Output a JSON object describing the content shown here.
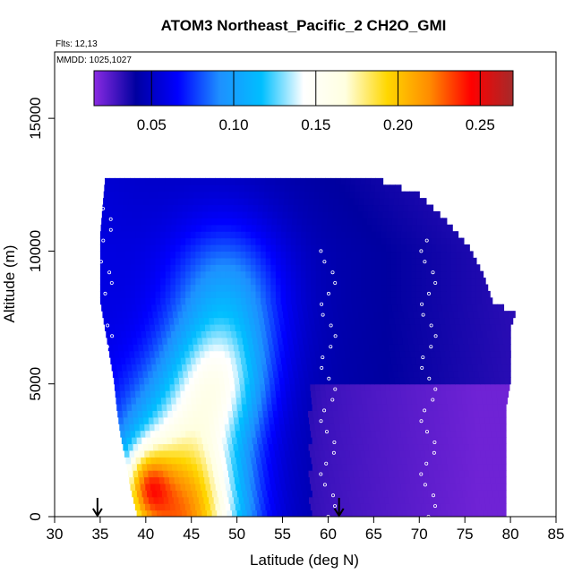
{
  "chart_data": {
    "type": "heatmap",
    "title": "ATOM3 Northeast_Pacific_2 CH2O_GMI",
    "annotations": [
      "Flts: 12,13",
      "MMDD: 1025,1027"
    ],
    "xlabel": "Latitude (deg N)",
    "ylabel": "Altitude (m)",
    "xlim": [
      30,
      85
    ],
    "ylim": [
      0,
      17500
    ],
    "x_ticks": [
      30,
      35,
      40,
      45,
      50,
      55,
      60,
      65,
      70,
      75,
      80,
      85
    ],
    "y_ticks": [
      0,
      5000,
      10000,
      15000
    ],
    "colorbar": {
      "range": [
        0.015,
        0.27
      ],
      "ticks": [
        0.05,
        0.1,
        0.15,
        0.2,
        0.25
      ],
      "tick_labels": [
        "0.05",
        "0.10",
        "0.15",
        "0.20",
        "0.25"
      ],
      "colors": [
        "#8a2be2",
        "#0000a0",
        "#0000ff",
        "#1e90ff",
        "#00bfff",
        "#ffffff",
        "#ffffe0",
        "#ffd700",
        "#ff8c00",
        "#ff0000",
        "#a52a2a"
      ]
    },
    "grid": false,
    "arrow_markers_x": [
      34.7,
      61.2
    ],
    "data_extent": {
      "lat_min_by_altitude": [
        [
          0,
          39.0
        ],
        [
          1000,
          38.3
        ],
        [
          2000,
          37.8
        ],
        [
          3000,
          37.2
        ],
        [
          4000,
          36.8
        ],
        [
          5000,
          36.5
        ],
        [
          6000,
          36.0
        ],
        [
          7000,
          35.5
        ],
        [
          8000,
          35.0
        ],
        [
          10500,
          35.0
        ],
        [
          12500,
          35.5
        ]
      ],
      "lat_max_by_altitude": [
        [
          0,
          79.5
        ],
        [
          1000,
          79.5
        ],
        [
          2000,
          79.5
        ],
        [
          3000,
          79.5
        ],
        [
          4000,
          79.5
        ],
        [
          5000,
          80.0
        ],
        [
          6000,
          80.0
        ],
        [
          7000,
          80.0
        ],
        [
          7500,
          80.5
        ],
        [
          8000,
          78.0
        ],
        [
          9000,
          77.0
        ],
        [
          10000,
          75.5
        ],
        [
          11000,
          73.0
        ],
        [
          12000,
          70.0
        ],
        [
          12500,
          66.0
        ]
      ]
    },
    "field_description_values": [
      {
        "lat": 40,
        "alt": 500,
        "value": 0.2
      },
      {
        "lat": 45,
        "alt": 3000,
        "value": 0.19
      },
      {
        "lat": 50,
        "alt": 5000,
        "value": 0.12
      },
      {
        "lat": 60,
        "alt": 2000,
        "value": 0.04
      },
      {
        "lat": 70,
        "alt": 6000,
        "value": 0.03
      },
      {
        "lat": 45,
        "alt": 9500,
        "value": 0.05
      },
      {
        "lat": 50,
        "alt": 12000,
        "value": 0.04
      }
    ],
    "flight_tracks": [
      {
        "lat": 35.5,
        "alt_start": 12500,
        "alt_end": 0
      },
      {
        "lat": 60.0,
        "alt_start": 10000,
        "alt_end": 0
      },
      {
        "lat": 71.0,
        "alt_start": 10500,
        "alt_end": 0
      }
    ]
  }
}
